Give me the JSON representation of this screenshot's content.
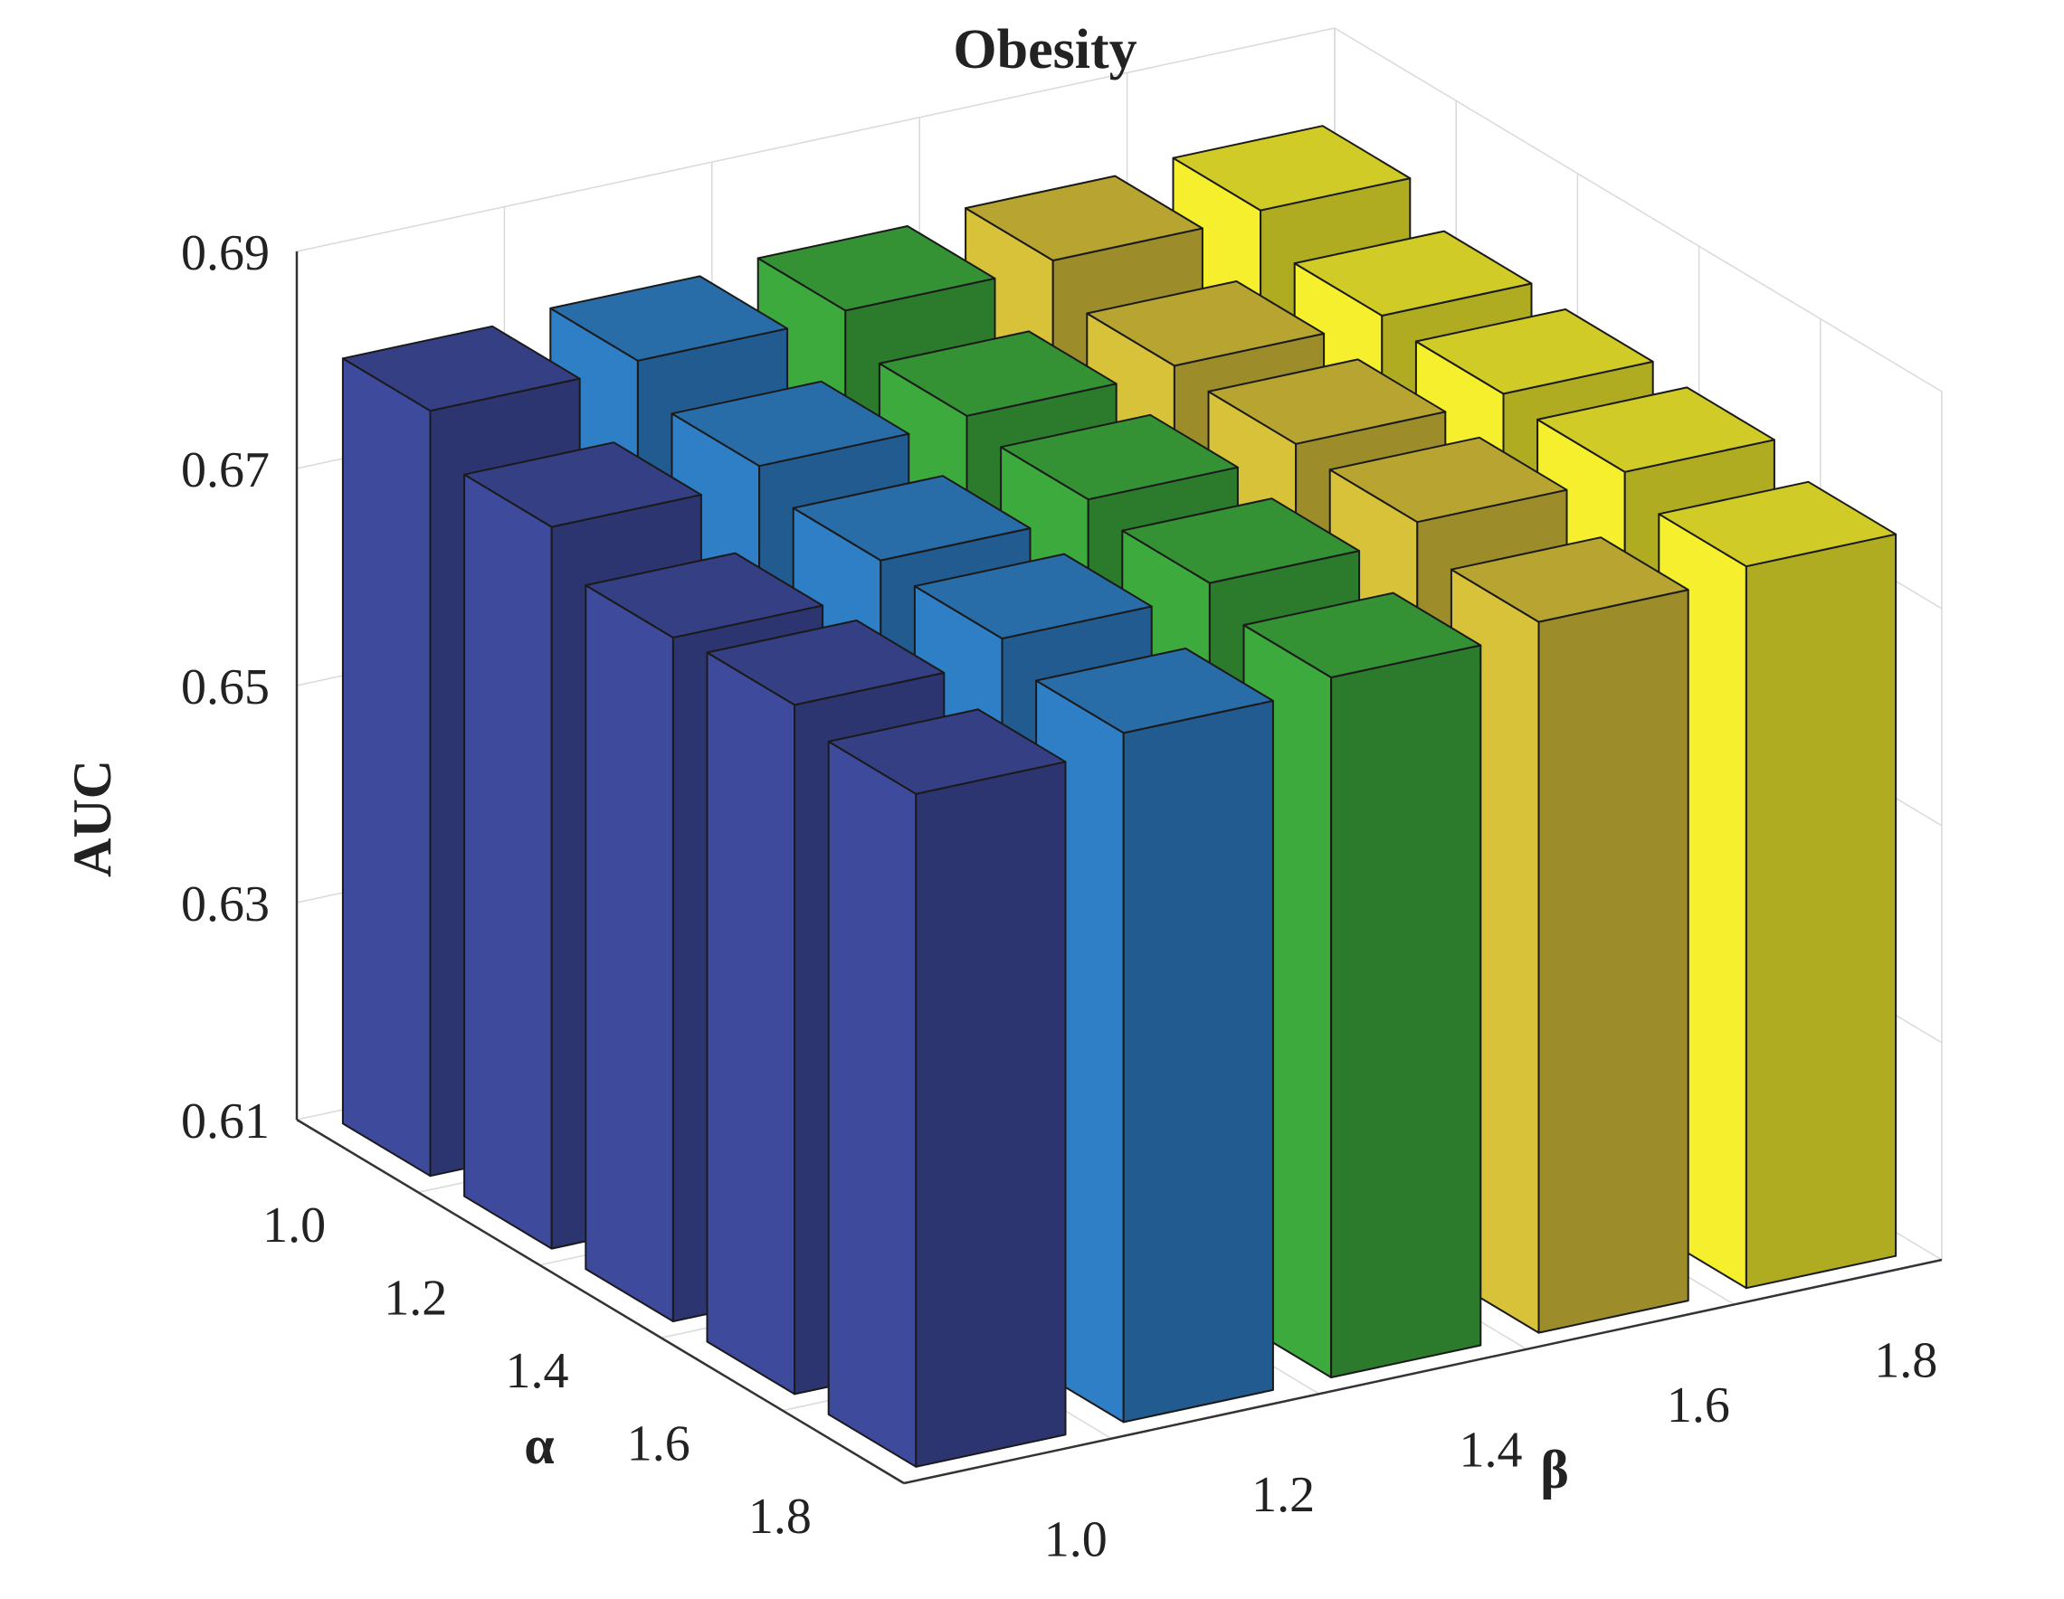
{
  "chart_data": {
    "type": "bar3d",
    "title": "Obesity",
    "zlabel": "AUC",
    "xlabel": "α",
    "ylabel": "β",
    "zlim": [
      0.61,
      0.69
    ],
    "z_ticks": [
      "0.61",
      "0.63",
      "0.65",
      "0.67",
      "0.69"
    ],
    "alpha_ticks": [
      "1.0",
      "1.2",
      "1.4",
      "1.6",
      "1.8"
    ],
    "beta_ticks": [
      "1.0",
      "1.2",
      "1.4",
      "1.6",
      "1.8"
    ],
    "grid": true,
    "series": [
      {
        "beta": "1.0",
        "color": "#3e4a9b",
        "values": [
          0.6805,
          0.6765,
          0.673,
          0.6735,
          0.672
        ]
      },
      {
        "beta": "1.2",
        "color": "#2f7fc6",
        "values": [
          0.681,
          0.678,
          0.676,
          0.6755,
          0.6735
        ]
      },
      {
        "beta": "1.4",
        "color": "#3daa3d",
        "values": [
          0.6815,
          0.6785,
          0.6775,
          0.6765,
          0.6745
        ]
      },
      {
        "beta": "1.6",
        "color": "#d8c23a",
        "values": [
          0.682,
          0.679,
          0.6785,
          0.678,
          0.6755
        ]
      },
      {
        "beta": "1.8",
        "color": "#f5ef2e",
        "values": [
          0.6825,
          0.6795,
          0.679,
          0.6785,
          0.6765
        ]
      }
    ]
  }
}
